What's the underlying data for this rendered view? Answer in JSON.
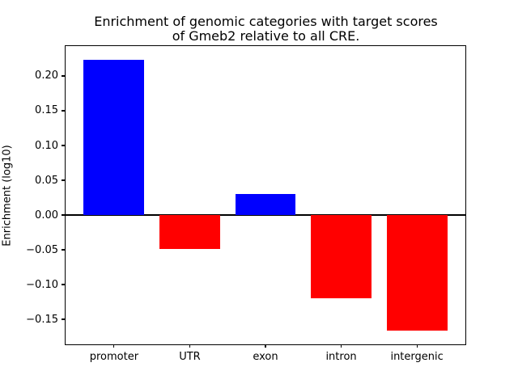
{
  "figure": {
    "background": "#ffffff",
    "frame_color": "#000000"
  },
  "chart_data": {
    "type": "bar",
    "title": "Enrichment of genomic categories with target scores\nof Gmeb2 relative to all CRE.",
    "xlabel": "",
    "ylabel": "Enrichment (log10)",
    "categories": [
      "promoter",
      "UTR",
      "exon",
      "intron",
      "intergenic"
    ],
    "values": [
      0.223,
      -0.049,
      0.03,
      -0.12,
      -0.166
    ],
    "bar_colors": [
      "#0000ff",
      "#ff0000",
      "#0000ff",
      "#ff0000",
      "#ff0000"
    ],
    "positive_color": "#0000ff",
    "negative_color": "#ff0000",
    "bar_width": 0.8,
    "xlim": [
      -0.64,
      4.64
    ],
    "ylim": [
      -0.186,
      0.243
    ],
    "yticks": [
      0.2,
      0.15,
      0.1,
      0.05,
      0.0,
      -0.05,
      -0.1,
      -0.15
    ],
    "ytick_labels": [
      "0.20",
      "0.15",
      "0.10",
      "0.05",
      "0.00",
      "−0.05",
      "−0.10",
      "−0.15"
    ],
    "grid": false,
    "legend": null,
    "zero_line": true,
    "zero_line_color": "#000000"
  }
}
